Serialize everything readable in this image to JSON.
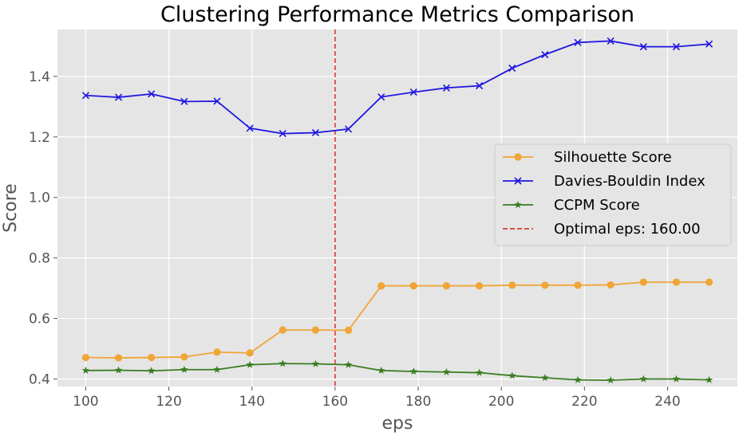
{
  "chart_data": {
    "type": "line",
    "title": "Clustering Performance Metrics Comparison",
    "xlabel": "eps",
    "ylabel": "Score",
    "xlim": [
      93.2,
      256.8
    ],
    "ylim": [
      0.375,
      1.555
    ],
    "xticks": [
      100,
      120,
      140,
      160,
      180,
      200,
      220,
      240
    ],
    "yticks": [
      0.4,
      0.6,
      0.8,
      1.0,
      1.2,
      1.4
    ],
    "xtick_labels": [
      "100",
      "120",
      "140",
      "160",
      "180",
      "200",
      "220",
      "240"
    ],
    "ytick_labels": [
      "0.4",
      "0.6",
      "0.8",
      "1.0",
      "1.2",
      "1.4"
    ],
    "grid": true,
    "legend_position": "center-right",
    "x": [
      100,
      107.9,
      115.8,
      123.7,
      131.6,
      139.5,
      147.4,
      155.3,
      163.2,
      171.1,
      178.9,
      186.8,
      194.7,
      202.6,
      210.5,
      218.4,
      226.3,
      234.2,
      242.1,
      250
    ],
    "series": [
      {
        "name": "Silhouette Score",
        "color": "#f0a536",
        "marker": "circle",
        "values": [
          0.471,
          0.47,
          0.471,
          0.473,
          0.489,
          0.486,
          0.562,
          0.562,
          0.561,
          0.708,
          0.708,
          0.708,
          0.708,
          0.71,
          0.71,
          0.71,
          0.711,
          0.72,
          0.72,
          0.72
        ]
      },
      {
        "name": "Davies-Bouldin Index",
        "color": "#1f16e0",
        "marker": "x",
        "values": [
          1.337,
          1.331,
          1.342,
          1.317,
          1.318,
          1.229,
          1.211,
          1.214,
          1.226,
          1.332,
          1.348,
          1.362,
          1.369,
          1.427,
          1.472,
          1.512,
          1.517,
          1.498,
          1.498,
          1.507
        ]
      },
      {
        "name": "CCPM Score",
        "color": "#3a7d22",
        "marker": "star",
        "values": [
          0.428,
          0.429,
          0.427,
          0.431,
          0.431,
          0.447,
          0.451,
          0.45,
          0.447,
          0.428,
          0.425,
          0.423,
          0.421,
          0.411,
          0.404,
          0.397,
          0.396,
          0.4,
          0.4,
          0.397
        ]
      }
    ],
    "reference_line": {
      "orientation": "vertical",
      "x": 160,
      "color": "#e03a2f",
      "style": "dashed",
      "label": "Optimal eps: 160.00"
    }
  }
}
